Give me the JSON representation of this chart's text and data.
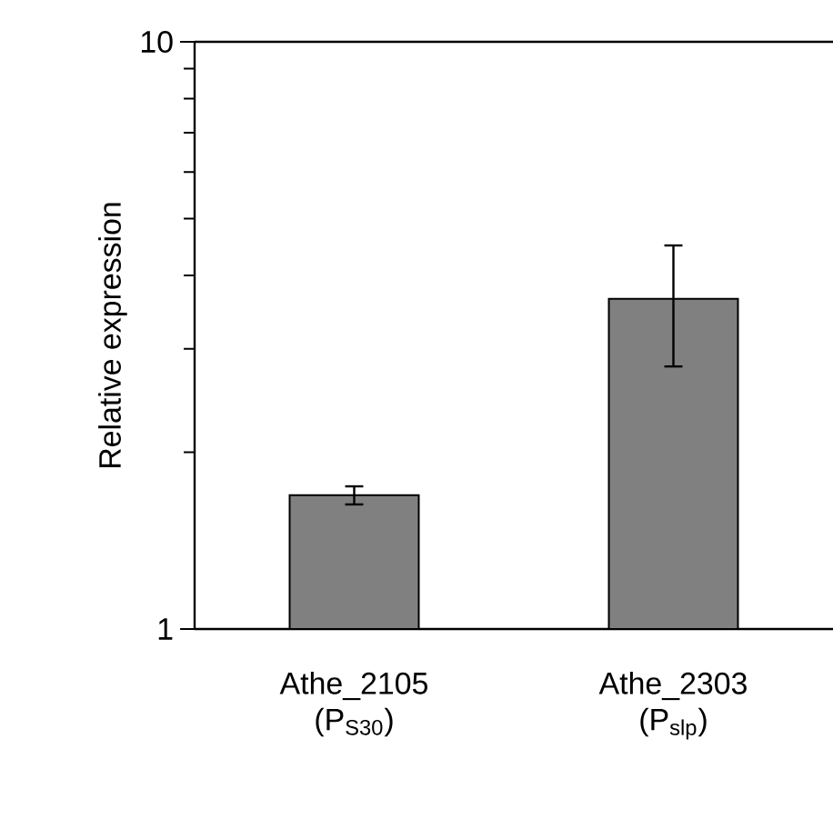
{
  "chart_data": {
    "type": "bar",
    "ylabel": "Relative expression",
    "categories": [
      "Athe_2105 (P$_{S30}$)",
      "Athe_2303 (P$_{slp}$)"
    ],
    "values": [
      1.69,
      3.65
    ],
    "errors": [
      0.06,
      0.85
    ],
    "color": "#808080",
    "log": true,
    "ylim": [
      1,
      10
    ],
    "yticks": [
      1,
      10
    ]
  }
}
